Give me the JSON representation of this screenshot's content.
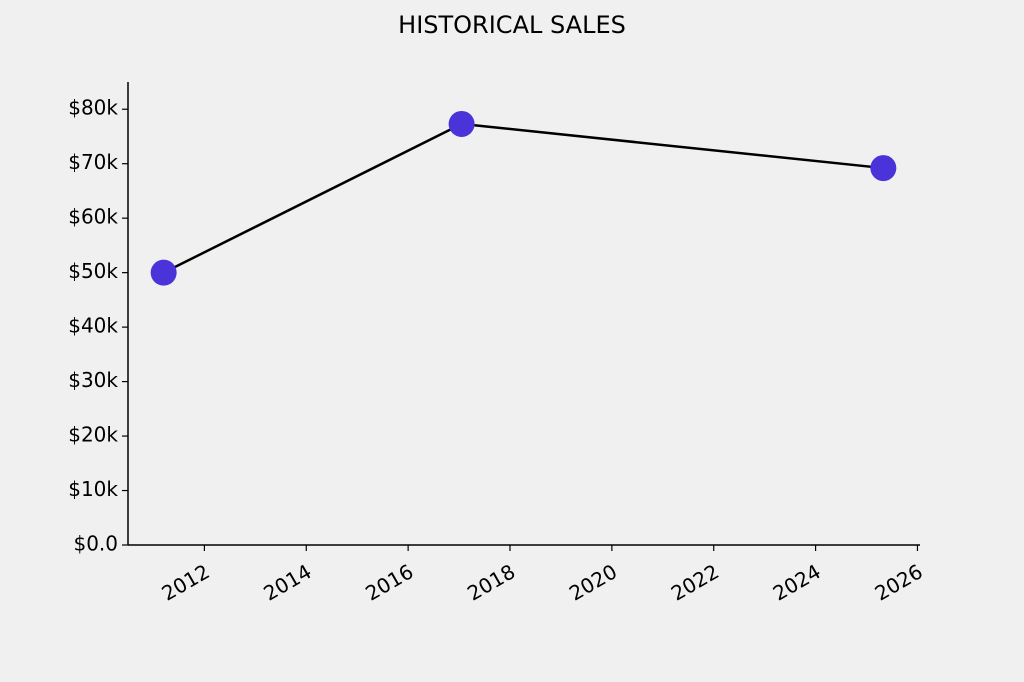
{
  "chart_data": {
    "type": "line",
    "title": "HISTORICAL SALES",
    "x": [
      2011.2,
      2017.05,
      2025.33
    ],
    "series": [
      {
        "color": "#4a33d8",
        "values": [
          50000,
          77300,
          69200
        ]
      }
    ],
    "xlim": [
      2010.5,
      2026.05
    ],
    "xticks": [
      2012,
      2014,
      2016,
      2018,
      2020,
      2022,
      2024,
      2026
    ],
    "ylim": [
      0,
      85000
    ],
    "yticks": [
      {
        "value": 0,
        "label": "$0.0"
      },
      {
        "value": 10000,
        "label": "$10k"
      },
      {
        "value": 20000,
        "label": "$20k"
      },
      {
        "value": 30000,
        "label": "$30k"
      },
      {
        "value": 40000,
        "label": "$40k"
      },
      {
        "value": 50000,
        "label": "$50k"
      },
      {
        "value": 60000,
        "label": "$60k"
      },
      {
        "value": 70000,
        "label": "$70k"
      },
      {
        "value": 80000,
        "label": "$80k"
      }
    ],
    "grid": false
  }
}
